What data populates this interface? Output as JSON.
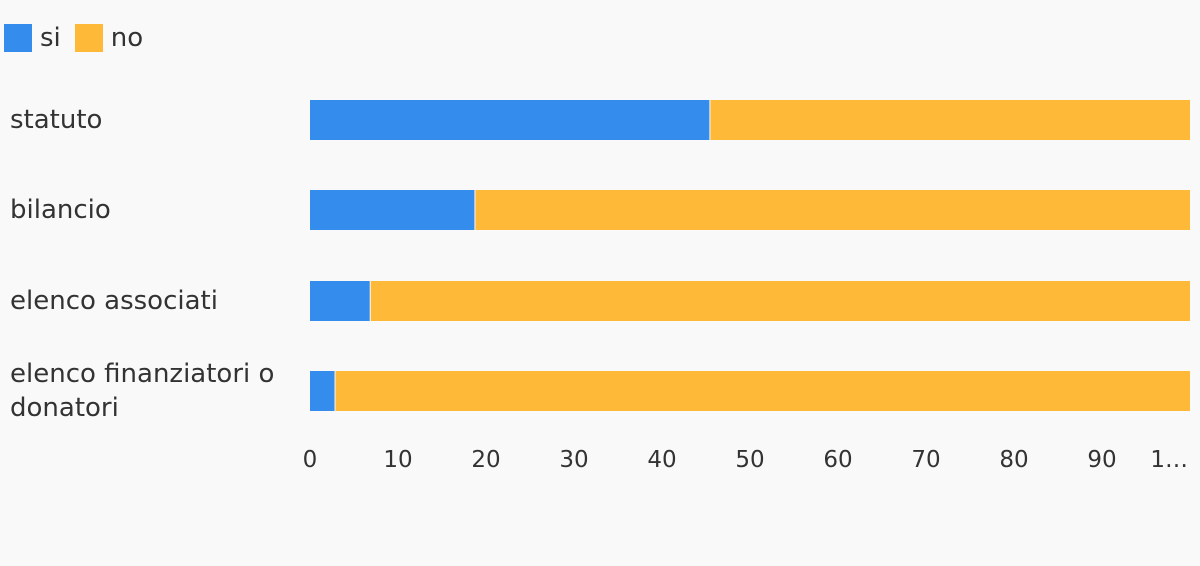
{
  "chart_data": {
    "type": "bar",
    "orientation": "horizontal",
    "stacked": true,
    "categories": [
      "statuto",
      "bilancio",
      "elenco associati",
      "elenco finanziatori o donatori"
    ],
    "series": [
      {
        "name": "si",
        "values": [
          45.5,
          18.8,
          6.9,
          2.9
        ],
        "color": "#348ded"
      },
      {
        "name": "no",
        "values": [
          54.5,
          81.2,
          93.1,
          97.1
        ],
        "color": "#ffb938"
      }
    ],
    "xlim": [
      0,
      100
    ],
    "xticks": [
      "0",
      "10",
      "20",
      "30",
      "40",
      "50",
      "60",
      "70",
      "80",
      "90",
      "1…"
    ],
    "legend_position": "top-left",
    "grid": false
  }
}
